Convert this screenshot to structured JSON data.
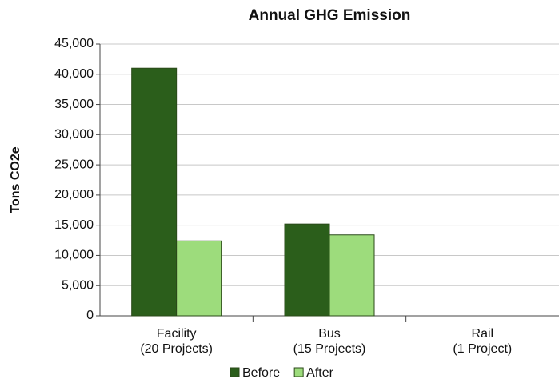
{
  "chart_data": {
    "type": "bar",
    "title": "Annual GHG Emission",
    "y_label": "Tons CO2e",
    "categories": [
      [
        "Facility",
        "(20 Projects)"
      ],
      [
        "Bus",
        "(15 Projects)"
      ],
      [
        "Rail",
        "(1 Project)"
      ]
    ],
    "series": [
      {
        "name": "Before",
        "color": "#2b5e1b",
        "values": [
          41000,
          15200,
          0
        ]
      },
      {
        "name": "After",
        "color": "#9ddc7c",
        "values": [
          12400,
          13400,
          0
        ]
      }
    ],
    "ylim": [
      0,
      45000
    ],
    "yticks": [
      0,
      {
        "value": 5000,
        "label": "5,000"
      },
      {
        "value": 10000,
        "label": "10,000"
      },
      {
        "value": 15000,
        "label": "15,000"
      },
      {
        "value": 20000,
        "label": "20,000"
      },
      {
        "value": 25000,
        "label": "25,000"
      },
      {
        "value": 30000,
        "label": "30,000"
      },
      {
        "value": 35000,
        "label": "35,000"
      },
      {
        "value": 40000,
        "label": "40,000"
      },
      {
        "value": 45000,
        "label": "45,000"
      }
    ],
    "grid": true,
    "legend": "bottom"
  }
}
